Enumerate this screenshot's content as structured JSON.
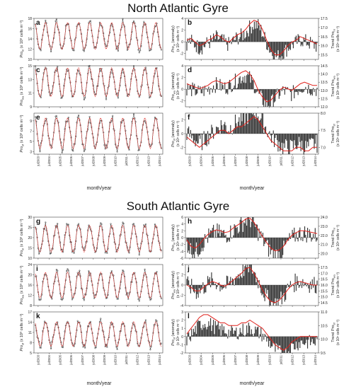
{
  "sections": [
    {
      "title": "North Atlantic Gyre",
      "xlabel": "month/year"
    },
    {
      "title": "South Atlantic Gyre",
      "xlabel": "month/year"
    }
  ],
  "years": [
    "jul2003",
    "jul2004",
    "jul2005",
    "jul2006",
    "jul2007",
    "jul2008",
    "jul2009",
    "jul2010",
    "jul2011",
    "jul2012",
    "jul2013",
    "jul2014"
  ],
  "colors": {
    "model": "#e0201b",
    "obs": "#333333",
    "bar": "#333333",
    "trend": "#e0201b"
  },
  "chart_data": [
    {
      "id": "a",
      "type": "line",
      "ylabel1": "Pro",
      "ylabel_sub": "nl",
      "ylabel2": "(x 10⁸ cells m⁻²)",
      "ylim": [
        10,
        18
      ],
      "ticks": [
        10,
        12,
        14,
        16,
        18
      ],
      "amp": 2.6,
      "mid": 14.6,
      "trend": []
    },
    {
      "id": "b",
      "type": "bar",
      "ylabel1": "Pro",
      "ylabel_sub": "nl",
      "ylabel2": "(anomaly)",
      "ylabel3": "(x 10⁸ cells m⁻²)",
      "ylim": [
        -3,
        4
      ],
      "ticks": [
        -2,
        0,
        2,
        4
      ],
      "ylabel_r": "Trend Pro",
      "ylabel_r_sub": "nl",
      "ylabel_r2": "(x 10⁸ cells m⁻²)",
      "ylim_r": [
        15.25,
        17.5
      ],
      "ticks_r": [
        15.5,
        16.0,
        16.5,
        17.0,
        17.5
      ],
      "trend": [
        16.3,
        16.4,
        16.2,
        16.0,
        16.1,
        16.3,
        16.4,
        16.6,
        16.5,
        16.3,
        16.2,
        16.4,
        16.6,
        16.7,
        16.9,
        17.2,
        17.4,
        17.3,
        16.9,
        16.3,
        15.8,
        15.5,
        15.5,
        15.7,
        16.0,
        16.2,
        16.3,
        16.5,
        16.4,
        16.3,
        16.2,
        16.1
      ]
    },
    {
      "id": "c",
      "type": "line",
      "ylabel1": "Pro",
      "ylabel_sub": "wa",
      "ylabel2": "(x 10⁸ cells m⁻²)",
      "ylim": [
        9,
        15
      ],
      "ticks": [
        9,
        11,
        13,
        15
      ],
      "amp": 2.1,
      "mid": 12.6,
      "trend": []
    },
    {
      "id": "d",
      "type": "bar",
      "ylabel1": "Pro",
      "ylabel_sub": "wa",
      "ylabel2": "(anomaly)",
      "ylabel3": "(x 10⁸ cells m⁻²)",
      "ylim": [
        -3,
        4
      ],
      "ticks": [
        -2,
        0,
        2,
        4
      ],
      "ylabel_r": "Trend Pro",
      "ylabel_r_sub": "wa",
      "ylabel_r2": "(x 10⁸ cells m⁻²)",
      "ylim_r": [
        12.0,
        14.5
      ],
      "ticks_r": [
        12.0,
        12.5,
        13.0,
        13.5,
        14.0,
        14.5
      ],
      "trend": [
        13.4,
        13.3,
        13.2,
        13.1,
        13.2,
        13.3,
        13.5,
        13.6,
        13.5,
        13.4,
        13.5,
        13.7,
        13.9,
        14.1,
        14.2,
        14.0,
        13.6,
        13.0,
        12.6,
        12.3,
        12.4,
        12.7,
        13.0,
        13.2,
        13.1,
        13.0,
        13.2,
        13.4,
        13.5,
        13.4,
        13.3,
        13.3
      ]
    },
    {
      "id": "e",
      "type": "line",
      "ylabel1": "Pro",
      "ylabel_sub": "sf",
      "ylabel2": "(x 10⁸ cells m⁻²)",
      "ylim": [
        2.5,
        10.5
      ],
      "ticks": [
        3,
        5,
        7,
        9
      ],
      "amp": 3.0,
      "mid": 6.6,
      "trend": []
    },
    {
      "id": "f",
      "type": "bar",
      "ylabel1": "Pro",
      "ylabel_sub": "sf",
      "ylabel2": "(anomaly)",
      "ylabel3": "(x 10⁸ cells m⁻²)",
      "ylim": [
        -3,
        3
      ],
      "ticks": [
        -2,
        0,
        2
      ],
      "ylabel_r": "Trend Pro",
      "ylabel_r_sub": "sf",
      "ylabel_r2": "(x 10⁸ cells m⁻²)",
      "ylim_r": [
        6.8,
        8.0
      ],
      "ticks_r": [
        7.0,
        7.5,
        8.0
      ],
      "trend": [
        7.3,
        7.2,
        7.1,
        7.0,
        7.1,
        7.2,
        7.3,
        7.4,
        7.5,
        7.5,
        7.4,
        7.5,
        7.6,
        7.6,
        7.7,
        7.8,
        7.9,
        7.8,
        7.6,
        7.4,
        7.2,
        7.1,
        7.0,
        6.9,
        6.9,
        6.9,
        7.0,
        7.0,
        6.9,
        6.9,
        7.0,
        7.0
      ]
    },
    {
      "id": "g",
      "type": "line",
      "ylabel1": "Pro",
      "ylabel_sub": "nl",
      "ylabel2": "(x 10⁸ cells m⁻²)",
      "ylim": [
        10,
        30
      ],
      "ticks": [
        10,
        15,
        20,
        25,
        30
      ],
      "amp": 6.5,
      "mid": 19.5,
      "trend": []
    },
    {
      "id": "h",
      "type": "bar",
      "ylabel1": "Pro",
      "ylabel_sub": "nl",
      "ylabel2": "(anomaly)",
      "ylabel3": "(x 10⁸ cells m⁻²)",
      "ylim": [
        -6,
        6
      ],
      "ticks": [
        -6,
        -4,
        -2,
        0,
        2,
        4,
        6
      ],
      "ylabel_r": "Trend Pro",
      "ylabel_r_sub": "nl",
      "ylabel_r2": "(x 10⁸ cells m⁻²)",
      "ylim_r": [
        19.5,
        24
      ],
      "ticks_r": [
        20,
        21,
        22,
        23,
        24
      ],
      "trend": [
        21.5,
        20.8,
        20.6,
        21.0,
        21.6,
        22.1,
        22.4,
        22.6,
        22.5,
        22.3,
        22.4,
        22.8,
        23.1,
        23.4,
        23.8,
        23.9,
        23.4,
        22.6,
        21.9,
        21.2,
        20.6,
        20.3,
        20.4,
        20.8,
        21.5,
        22.0,
        22.3,
        22.5,
        22.5,
        22.4,
        22.3,
        22.2
      ]
    },
    {
      "id": "i",
      "type": "line",
      "ylabel1": "Pro",
      "ylabel_sub": "wa",
      "ylabel2": "(x 10⁸ cells m⁻²)",
      "ylim": [
        8,
        24
      ],
      "ticks": [
        8,
        12,
        16,
        20,
        24
      ],
      "amp": 5.0,
      "mid": 16.0,
      "trend": []
    },
    {
      "id": "j",
      "type": "bar",
      "ylabel1": "Pro",
      "ylabel_sub": "wa",
      "ylabel2": "(anomaly)",
      "ylabel3": "(x 10⁸ cells m⁻²)",
      "ylim": [
        -4,
        4
      ],
      "ticks": [
        -4,
        -2,
        0,
        2,
        4
      ],
      "ylabel_r": "Trend Pro",
      "ylabel_r_sub": "wa",
      "ylabel_r2": "(x 10⁸ cells m⁻²)",
      "ylim_r": [
        14.25,
        17.75
      ],
      "ticks_r": [
        14.5,
        15.0,
        15.5,
        16.0,
        16.5,
        17.0,
        17.5
      ],
      "trend": [
        16.0,
        15.8,
        15.5,
        15.5,
        15.8,
        16.1,
        16.3,
        16.2,
        16.0,
        15.9,
        16.1,
        16.4,
        16.7,
        17.0,
        17.4,
        17.5,
        17.0,
        16.3,
        15.6,
        15.0,
        14.6,
        14.5,
        14.7,
        15.1,
        15.6,
        16.0,
        16.2,
        16.3,
        16.2,
        16.1,
        16.0,
        16.0
      ]
    },
    {
      "id": "k",
      "type": "line",
      "ylabel1": "Pro",
      "ylabel_sub": "sf",
      "ylabel2": "(x 10⁸ cells m⁻²)",
      "ylim": [
        5,
        17
      ],
      "ticks": [
        5,
        8,
        11,
        14,
        17
      ],
      "amp": 3.6,
      "mid": 10.5,
      "trend": []
    },
    {
      "id": "l",
      "type": "bar",
      "ylabel1": "Pro",
      "ylabel_sub": "sf",
      "ylabel2": "(anomaly)",
      "ylabel3": "(x 10⁸ cells m⁻²)",
      "ylim": [
        -2,
        3
      ],
      "ticks": [
        -2,
        -1,
        0,
        1,
        2,
        3
      ],
      "ylabel_r": "Trend Pro",
      "ylabel_r_sub": "sf",
      "ylabel_r2": "(x 10⁸ cells m⁻²)",
      "ylim_r": [
        9.5,
        11.0
      ],
      "ticks_r": [
        9.5,
        10.0,
        10.5,
        11.0
      ],
      "trend": [
        10.2,
        10.4,
        10.6,
        10.8,
        10.9,
        10.9,
        10.8,
        10.7,
        10.6,
        10.6,
        10.5,
        10.5,
        10.5,
        10.6,
        10.6,
        10.7,
        10.6,
        10.5,
        10.4,
        10.2,
        10.0,
        9.8,
        9.7,
        9.6,
        9.7,
        9.9,
        10.0,
        10.1,
        10.1,
        10.1,
        10.1,
        10.1
      ]
    }
  ]
}
